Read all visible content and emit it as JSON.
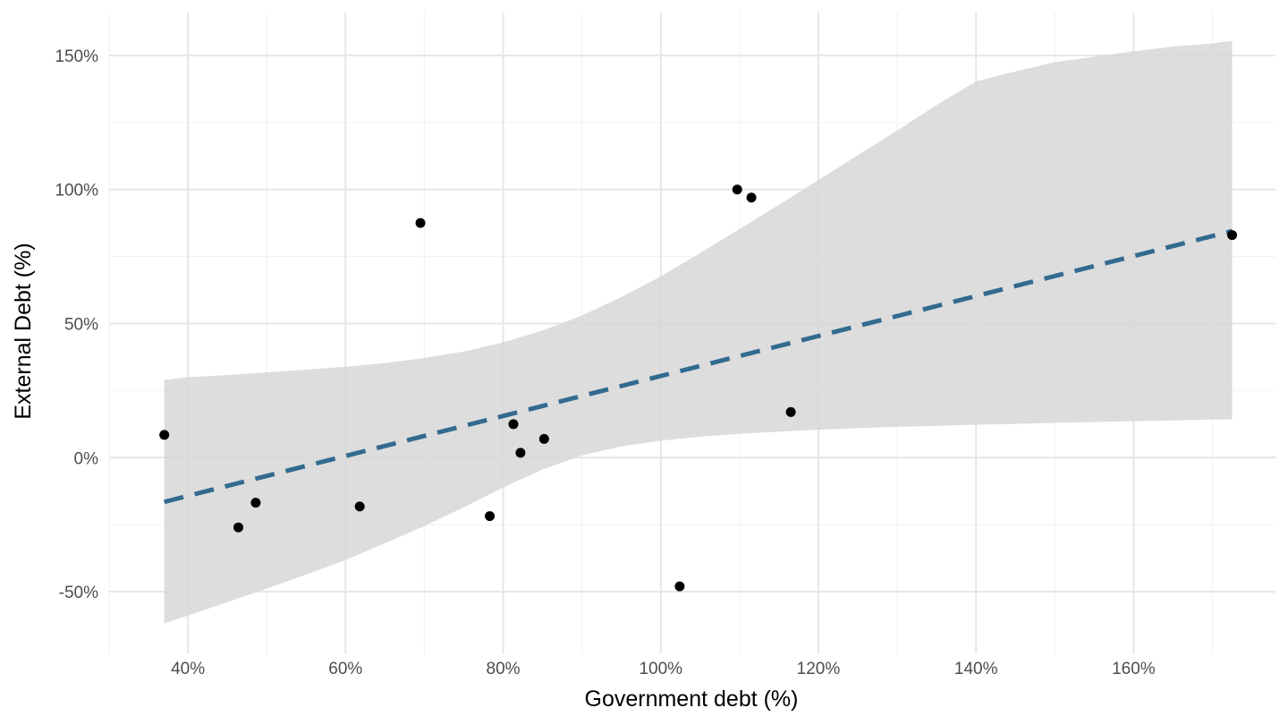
{
  "chart_data": {
    "type": "scatter",
    "title": "",
    "xlabel": "Government debt (%)",
    "ylabel": "External Debt (%)",
    "xlim": [
      30,
      178
    ],
    "ylim": [
      -73,
      166
    ],
    "x_ticks": [
      40,
      60,
      80,
      100,
      120,
      140,
      160
    ],
    "x_tick_labels": [
      "40%",
      "60%",
      "80%",
      "100%",
      "120%",
      "140%",
      "160%"
    ],
    "y_ticks": [
      -50,
      0,
      50,
      100,
      150
    ],
    "y_tick_labels": [
      "-50%",
      "0%",
      "50%",
      "100%",
      "150%"
    ],
    "grid": true,
    "points": [
      {
        "x": 37.0,
        "y": 8.5
      },
      {
        "x": 46.4,
        "y": -26
      },
      {
        "x": 48.6,
        "y": -16.8
      },
      {
        "x": 61.8,
        "y": -18.2
      },
      {
        "x": 69.5,
        "y": 87.5
      },
      {
        "x": 78.3,
        "y": -21.8
      },
      {
        "x": 81.3,
        "y": 12.5
      },
      {
        "x": 82.2,
        "y": 1.8
      },
      {
        "x": 85.2,
        "y": 7.0
      },
      {
        "x": 102.4,
        "y": -48
      },
      {
        "x": 109.7,
        "y": 100
      },
      {
        "x": 111.5,
        "y": 97
      },
      {
        "x": 116.5,
        "y": 17
      },
      {
        "x": 172.5,
        "y": 83
      }
    ],
    "trend_line": {
      "style": "dashed",
      "color": "#336a90",
      "x": [
        37.0,
        172.5
      ],
      "y": [
        -16.5,
        84.5
      ]
    },
    "confidence_band": {
      "color": "#d6d6d6",
      "x": [
        37,
        40,
        45,
        50,
        55,
        60,
        65,
        70,
        75,
        80,
        85,
        90,
        95,
        100,
        105,
        110,
        115,
        120,
        125,
        130,
        135,
        140,
        145,
        150,
        155,
        160,
        165,
        170,
        172.5
      ],
      "upper": [
        29,
        30,
        30.8,
        31.8,
        32.8,
        33.9,
        35.3,
        37.2,
        39.6,
        43,
        47.4,
        53,
        59.9,
        67.6,
        76.3,
        85.3,
        94.3,
        103.5,
        112.8,
        122,
        131.5,
        140.3,
        144,
        147.5,
        149.5,
        151.5,
        153.3,
        154.5,
        155.5
      ],
      "lower": [
        -61.8,
        -58.9,
        -53.9,
        -48.8,
        -43.6,
        -38.2,
        -31.9,
        -25.5,
        -18.5,
        -11.1,
        -4.4,
        0.8,
        4.2,
        6.3,
        7.8,
        8.9,
        9.7,
        10.4,
        11.0,
        11.5,
        11.9,
        12.3,
        12.6,
        13.0,
        13.3,
        13.6,
        13.9,
        14.2,
        14.3
      ]
    }
  }
}
